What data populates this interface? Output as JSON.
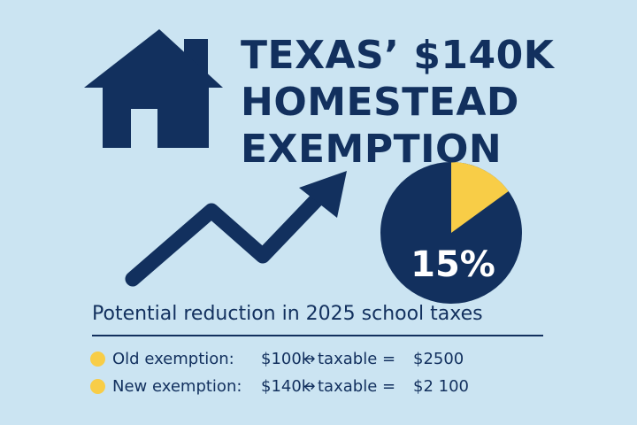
{
  "title_lines": [
    "TEXAS’ $140K",
    "HOMESTEAD",
    "EXEMPTION"
  ],
  "icons": {
    "house": "house-icon",
    "trend": "trend-up-arrow-icon",
    "bullet": "bullet-dot-icon"
  },
  "pie": {
    "label": "15%",
    "fraction": 0.15
  },
  "subtitle": "Potential reduction in 2025 school taxes",
  "rows": [
    {
      "label": "Old exemption:",
      "amount": "$100k",
      "arrow": "→",
      "taxable_label": "taxable =",
      "value": "$2500"
    },
    {
      "label": "New exemption:",
      "amount": "$140k",
      "arrow": "→",
      "taxable_label": "taxable =",
      "value": "$2 100"
    }
  ],
  "colors": {
    "background": "#cbe4f2",
    "navy": "#12305e",
    "yellow": "#f8cd47"
  }
}
